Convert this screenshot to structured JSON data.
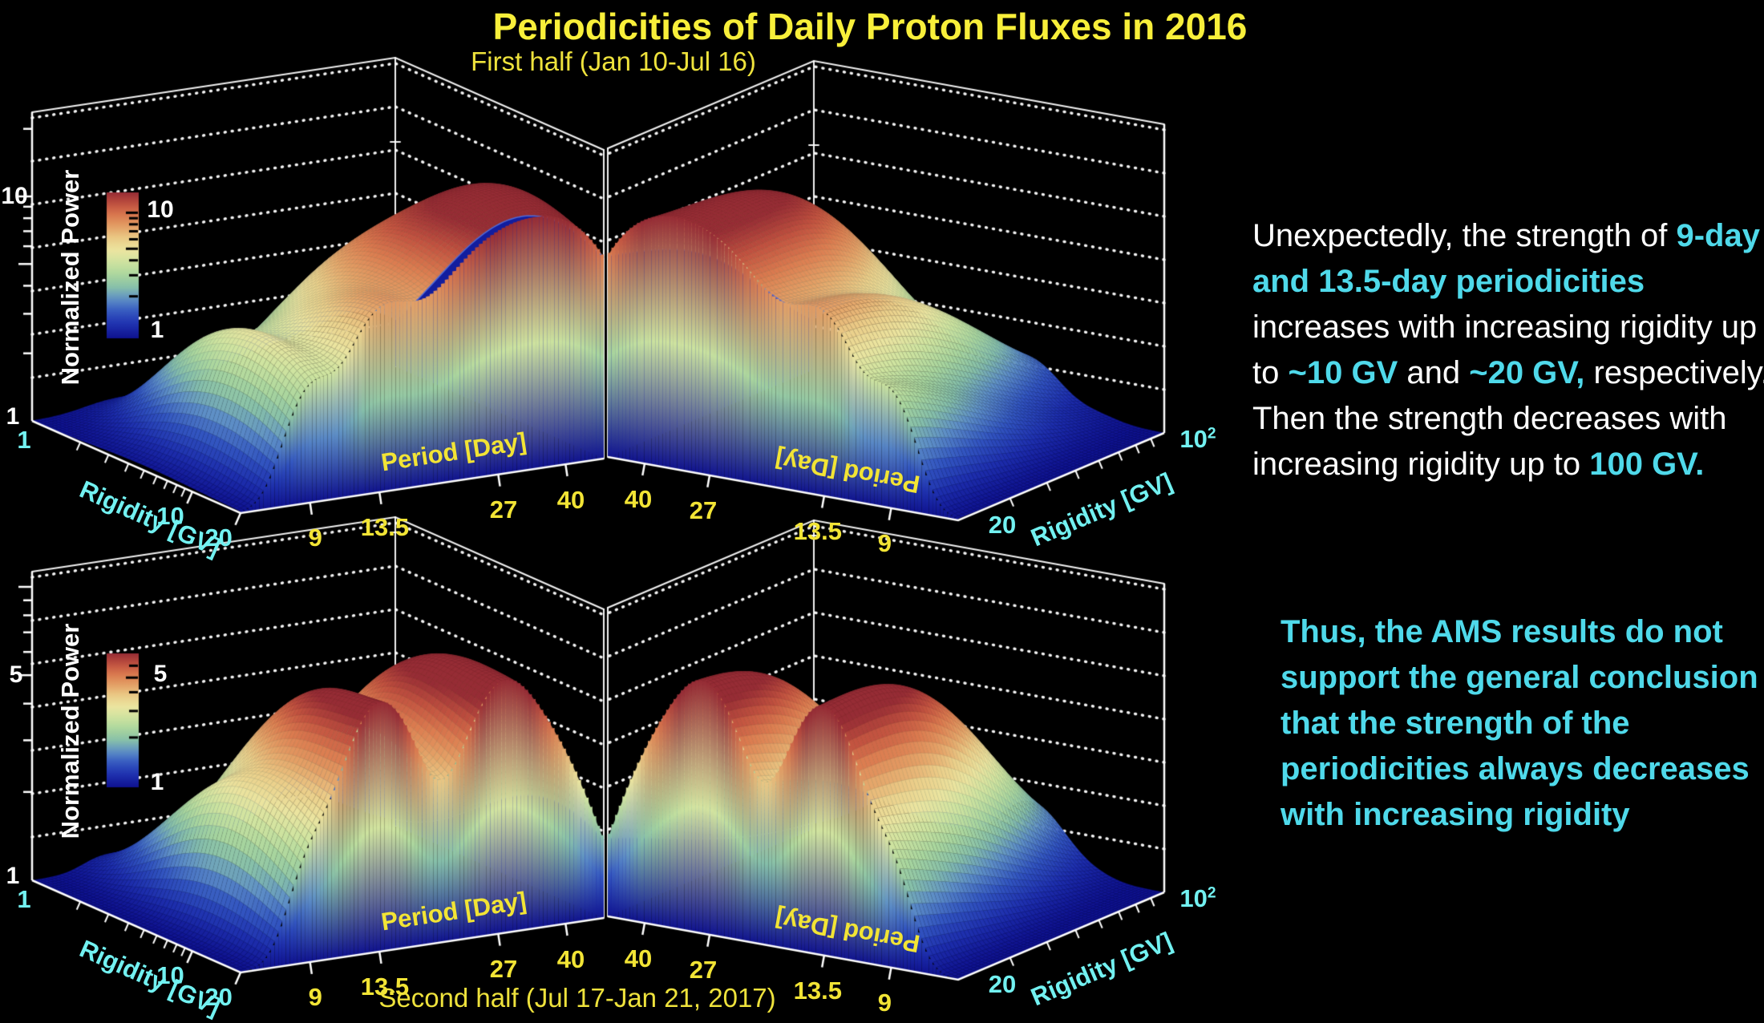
{
  "title": "Periodicities of Daily Proton Fluxes in 2016",
  "colors": {
    "title_yellow": "#f8ef3a",
    "axis_yellow": "#f2e435",
    "axis_cyan": "#72f1f1",
    "text_cyan": "#4fd9ea",
    "text_white": "#ffffff",
    "background": "#000000"
  },
  "chart_data": {
    "type": "surface3d",
    "description": "Normalized power of periodicities in daily proton fluxes vs period [day] and rigidity [GV]; each row shows one half-year as two mirrored 3D surface views (rigidity 1-20 GV in left view, 20-100 GV in right view), log scales on all axes, rainbow colormap from power 1 (blue floor) to maximum (dark red).",
    "colormap": [
      [
        0,
        "#0f128f"
      ],
      [
        0.09,
        "#1e2fae"
      ],
      [
        0.18,
        "#3356c1"
      ],
      [
        0.27,
        "#5f90c7"
      ],
      [
        0.35,
        "#87c0aa"
      ],
      [
        0.43,
        "#a9d69e"
      ],
      [
        0.52,
        "#cfe4a0"
      ],
      [
        0.6,
        "#ebe5a0"
      ],
      [
        0.68,
        "#eccf8a"
      ],
      [
        0.76,
        "#e5a368"
      ],
      [
        0.84,
        "#dc7c50"
      ],
      [
        0.92,
        "#c25240"
      ],
      [
        1,
        "#962c35"
      ]
    ],
    "section_face_color": "#121d9e",
    "section_edge_color": "#4f6ad8",
    "period_axis": {
      "label": "Period [Day]",
      "ticks": [
        "9",
        "13.5",
        "27",
        "40"
      ],
      "range_days": [
        6,
        50
      ]
    },
    "rigidity_axis": {
      "label": "Rigidity [GV]",
      "origin_label": "1",
      "left_labeled_ticks": [
        "10",
        "20"
      ],
      "left_minor_ticks": [
        2,
        3,
        4,
        5,
        6,
        7,
        8,
        9
      ],
      "right_minor_ticks": [
        30,
        40,
        50,
        60,
        70,
        80,
        90
      ],
      "right_near_label": "20",
      "right_far_label": "10^2",
      "left_range_gv": [
        1,
        20
      ],
      "right_range_gv": [
        20,
        100
      ]
    },
    "z_axis": {
      "label": "Normalized Power"
    },
    "rows": [
      {
        "subtitle": "First half (Jan 10-Jul 16)",
        "zmin_label": "1",
        "zmax_label": "10",
        "zclip": 12,
        "z_ticks": [
          2,
          3,
          4,
          5,
          6,
          7,
          8,
          9,
          10,
          20
        ],
        "colorbar_ticks": [
          2,
          3,
          4,
          5,
          6,
          7,
          8,
          9,
          10
        ],
        "peaks": [
          {
            "period_day": 29,
            "rigidity_gv": 11,
            "sigma_logp": 0.17,
            "sigma_logr": 0.42,
            "amplitude": 11
          },
          {
            "period_day": 43,
            "rigidity_gv": 9,
            "sigma_logp": 0.1,
            "sigma_logr": 0.45,
            "amplitude": 5
          },
          {
            "period_day": 30,
            "rigidity_gv": 38,
            "sigma_logp": 0.13,
            "sigma_logr": 0.18,
            "amplitude": 6
          },
          {
            "period_day": 13.5,
            "rigidity_gv": 22,
            "sigma_logp": 0.075,
            "sigma_logr": 0.33,
            "amplitude": 4.2
          },
          {
            "period_day": 9,
            "rigidity_gv": 11,
            "sigma_logp": 0.055,
            "sigma_logr": 0.35,
            "amplitude": 2.6
          },
          {
            "period_day": 11,
            "rigidity_gv": 4.5,
            "sigma_logp": 0.1,
            "sigma_logr": 0.28,
            "amplitude": 1.3
          },
          {
            "period_day": 19,
            "rigidity_gv": 5,
            "sigma_logp": 0.09,
            "sigma_logr": 0.3,
            "amplitude": 1.2
          }
        ]
      },
      {
        "subtitle": "Second half (Jul 17-Jan 21, 2017)",
        "zmin_label": "1",
        "zmax_label": "5",
        "zclip": 6.3,
        "z_ticks": [
          2,
          3,
          4,
          5,
          6,
          7,
          8,
          9,
          10
        ],
        "colorbar_ticks": [
          2,
          3,
          4,
          5,
          6
        ],
        "peaks": [
          {
            "period_day": 27,
            "rigidity_gv": 10,
            "sigma_logp": 0.09,
            "sigma_logr": 0.45,
            "amplitude": 5.2
          },
          {
            "period_day": 13.5,
            "rigidity_gv": 12,
            "sigma_logp": 0.085,
            "sigma_logr": 0.42,
            "amplitude": 5.5
          },
          {
            "period_day": 38,
            "rigidity_gv": 10,
            "sigma_logp": 0.085,
            "sigma_logr": 0.4,
            "amplitude": 2.8
          },
          {
            "period_day": 9,
            "rigidity_gv": 8,
            "sigma_logp": 0.05,
            "sigma_logr": 0.38,
            "amplitude": 1.6
          },
          {
            "period_day": 13.5,
            "rigidity_gv": 35,
            "sigma_logp": 0.08,
            "sigma_logr": 0.2,
            "amplitude": 2.6
          },
          {
            "period_day": 28,
            "rigidity_gv": 30,
            "sigma_logp": 0.07,
            "sigma_logr": 0.2,
            "amplitude": 2.2
          },
          {
            "period_day": 20,
            "rigidity_gv": 6,
            "sigma_logp": 0.09,
            "sigma_logr": 0.3,
            "amplitude": 1.2
          }
        ]
      }
    ]
  },
  "annotations": {
    "para1": {
      "segments": [
        {
          "text": "Unexpectedly, the strength of ",
          "style": "white"
        },
        {
          "text": "9-day and 13.5-day periodicities",
          "style": "cyan"
        },
        {
          "text": " increases with increasing rigidity up to ",
          "style": "white"
        },
        {
          "text": "~10 GV",
          "style": "cyan"
        },
        {
          "text": " and ",
          "style": "white"
        },
        {
          "text": "~20 GV,",
          "style": "cyan"
        },
        {
          "text": " respectively. Then the strength decreases with increasing rigidity up to ",
          "style": "white"
        },
        {
          "text": "100 GV.",
          "style": "cyan"
        }
      ]
    },
    "para2": {
      "text": "Thus, the AMS results do not support the general conclusion that the strength of the periodicities always decreases with increasing rigidity"
    }
  }
}
